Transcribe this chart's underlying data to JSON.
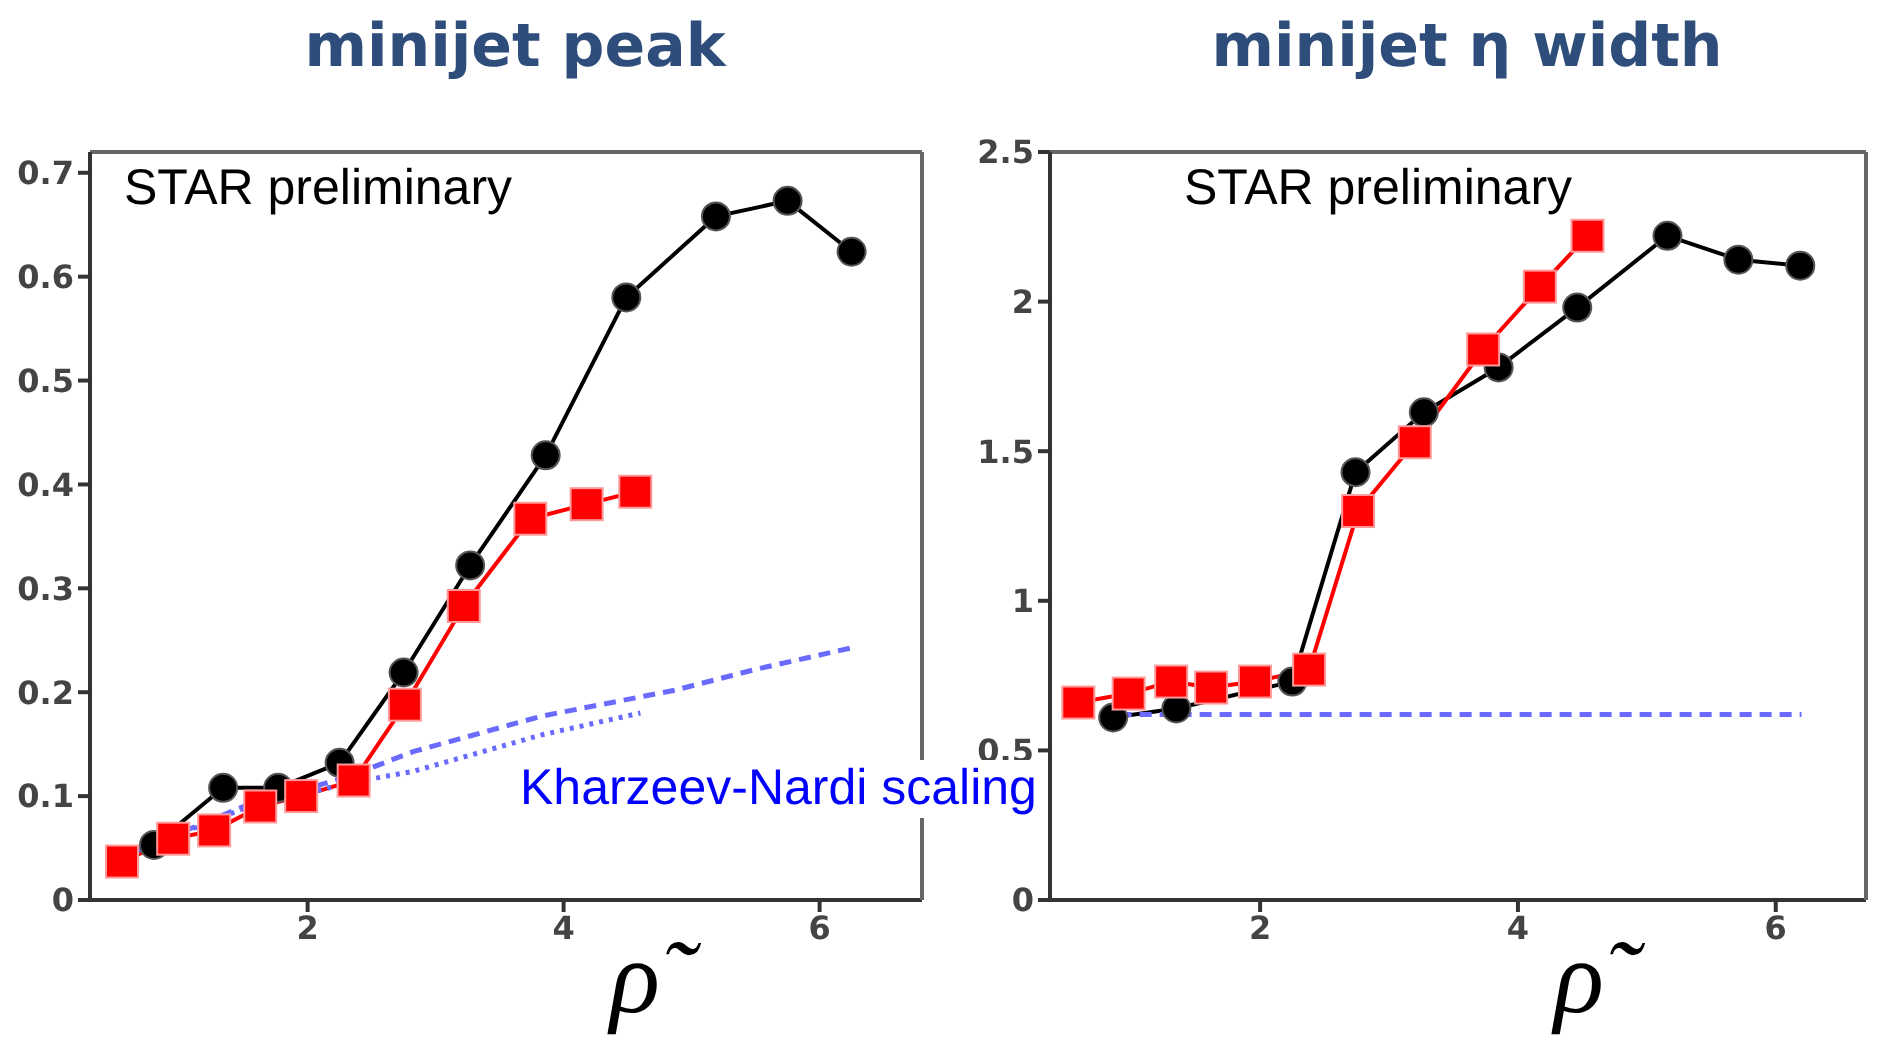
{
  "chart_data": [
    {
      "type": "line",
      "title": "minijet peak",
      "xlabel": "ρ̃",
      "xlim": [
        0.3,
        6.8
      ],
      "xticks": [
        2,
        4,
        6
      ],
      "ylim": [
        0,
        0.72
      ],
      "yticks": [
        0,
        0.1,
        0.2,
        0.3,
        0.4,
        0.5,
        0.6,
        0.7
      ],
      "annotations": [
        "STAR preliminary",
        "Kharzeev-Nardi scaling"
      ],
      "series": [
        {
          "color": "#000000",
          "marker": "circle",
          "line_style": "solid",
          "x": [
            0.8,
            1.34,
            1.77,
            2.25,
            2.75,
            3.27,
            3.86,
            4.49,
            5.19,
            5.75,
            6.25
          ],
          "values": [
            0.053,
            0.108,
            0.108,
            0.132,
            0.219,
            0.322,
            0.428,
            0.58,
            0.658,
            0.673,
            0.624
          ]
        },
        {
          "color": "#ff0000",
          "marker": "square",
          "line_style": "solid",
          "x": [
            0.55,
            0.95,
            1.27,
            1.63,
            1.95,
            2.36,
            2.76,
            3.22,
            3.74,
            4.18,
            4.56
          ],
          "values": [
            0.037,
            0.059,
            0.067,
            0.09,
            0.1,
            0.115,
            0.188,
            0.283,
            0.367,
            0.381,
            0.393
          ]
        },
        {
          "color": "#6a6aff",
          "marker": "none",
          "line_style": "dashed",
          "x": [
            0.6,
            1.5,
            2.3,
            2.83,
            3.83,
            4.87,
            5.5,
            6.26
          ],
          "values": [
            0.044,
            0.09,
            0.118,
            0.143,
            0.177,
            0.202,
            0.222,
            0.243
          ]
        },
        {
          "color": "#6a6aff",
          "marker": "none",
          "line_style": "dotted",
          "x": [
            0.6,
            1.5,
            2.3,
            2.83,
            3.83,
            4.6
          ],
          "values": [
            0.044,
            0.088,
            0.112,
            0.124,
            0.159,
            0.18
          ]
        }
      ]
    },
    {
      "type": "line",
      "title": "minijet η width",
      "xlabel": "ρ̃",
      "xlim": [
        0.37,
        6.7
      ],
      "xticks": [
        2,
        4,
        6
      ],
      "ylim": [
        0,
        2.5
      ],
      "yticks": [
        0,
        0.5,
        1,
        1.5,
        2,
        2.5
      ],
      "annotations": [
        "STAR preliminary"
      ],
      "series": [
        {
          "color": "#000000",
          "marker": "circle",
          "line_style": "solid",
          "x": [
            0.86,
            1.35,
            2.25,
            2.74,
            3.27,
            3.85,
            4.46,
            5.16,
            5.71,
            6.19
          ],
          "values": [
            0.61,
            0.64,
            0.73,
            1.43,
            1.63,
            1.78,
            1.98,
            2.22,
            2.14,
            2.12
          ]
        },
        {
          "color": "#ff0000",
          "marker": "square",
          "line_style": "solid",
          "x": [
            0.59,
            0.98,
            1.31,
            1.62,
            1.96,
            2.38,
            2.76,
            3.2,
            3.73,
            4.17,
            4.54
          ],
          "values": [
            0.66,
            0.69,
            0.73,
            0.71,
            0.73,
            0.77,
            1.3,
            1.53,
            1.84,
            2.05,
            2.22
          ]
        },
        {
          "color": "#6a6aff",
          "marker": "none",
          "line_style": "dashed",
          "x": [
            0.6,
            6.2
          ],
          "values": [
            0.62,
            0.62
          ]
        }
      ]
    }
  ]
}
